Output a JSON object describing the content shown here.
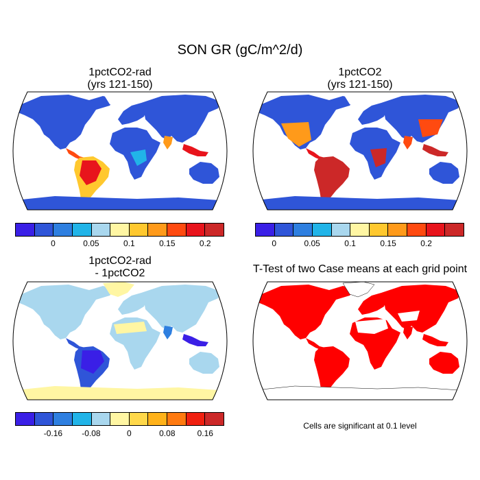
{
  "title": "SON GR (gC/m^2/d)",
  "panels": [
    {
      "id": "p1",
      "title_line1": "1pctCO2-rad",
      "title_line2": "(yrs 121-150)"
    },
    {
      "id": "p2",
      "title_line1": "1pctCO2",
      "title_line2": "(yrs 121-150)"
    },
    {
      "id": "p3",
      "title_line1": "1pctCO2-rad",
      "title_line2": "- 1pctCO2"
    },
    {
      "id": "p4",
      "title_line1": "T-Test of two Case means at each grid point",
      "title_line2": ""
    }
  ],
  "colorbars": {
    "gr": {
      "colors": [
        "#3a1fe6",
        "#2f55d8",
        "#2e7fe0",
        "#21b4e8",
        "#a9d7ee",
        "#fff6a3",
        "#ffc82e",
        "#ff9a1a",
        "#ff4a10",
        "#e8141c",
        "#cc2828"
      ],
      "labels": [
        "0",
        "0.05",
        "0.1",
        "0.15",
        "0.2"
      ]
    },
    "diff": {
      "colors": [
        "#3a1fe6",
        "#2f55d8",
        "#2e7fe0",
        "#21b4e8",
        "#a9d7ee",
        "#fff6a3",
        "#ffd84a",
        "#ffb21a",
        "#ff7a10",
        "#f02010",
        "#cc2828"
      ],
      "labels": [
        "-0.16",
        "-0.08",
        "0",
        "0.08",
        "0.16"
      ]
    }
  },
  "ttest_note": "Cells are significant at 0.1 level"
}
